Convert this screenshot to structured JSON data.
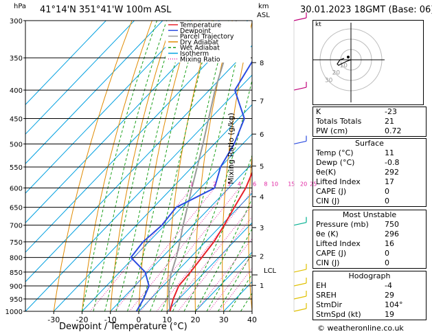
{
  "header": {
    "location": "41°14'N  351°41'W  100m  ASL",
    "datetime": "30.01.2023  18GMT  (Base: 06)",
    "hpa_label": "hPa",
    "km_label": "km",
    "asl_label": "ASL"
  },
  "legend": [
    "Temperature",
    "Dewpoint",
    "Parcel Trajectory",
    "Dry Adiabat",
    "Wet Adiabat",
    "Isotherm",
    "Mixing Ratio"
  ],
  "axes": {
    "xlabel": "Dewpoint / Temperature (°C)",
    "mixing_label": "Mixing Ratio (g/kg)",
    "lcl_label": "LCL"
  },
  "hodograph": {
    "unit_label": "kt",
    "ring_labels": [
      "30",
      "20",
      "10"
    ]
  },
  "indices": {
    "k_label": "K",
    "k": "-23",
    "tt_label": "Totals Totals",
    "tt": "21",
    "pw_label": "PW (cm)",
    "pw": "0.72"
  },
  "surface": {
    "title": "Surface",
    "rows": [
      {
        "label": "Temp (°C)",
        "value": "11"
      },
      {
        "label": "Dewp (°C)",
        "value": "-0.8"
      },
      {
        "label": "θe(K)",
        "value": "292"
      },
      {
        "label": "Lifted Index",
        "value": "17"
      },
      {
        "label": "CAPE (J)",
        "value": "0"
      },
      {
        "label": "CIN (J)",
        "value": "0"
      }
    ]
  },
  "most_unstable": {
    "title": "Most Unstable",
    "rows": [
      {
        "label": "Pressure (mb)",
        "value": "750"
      },
      {
        "label": "θe (K)",
        "value": "296"
      },
      {
        "label": "Lifted Index",
        "value": "16"
      },
      {
        "label": "CAPE (J)",
        "value": "0"
      },
      {
        "label": "CIN (J)",
        "value": "0"
      }
    ]
  },
  "hodo_table": {
    "title": "Hodograph",
    "rows": [
      {
        "label": "EH",
        "value": "-4"
      },
      {
        "label": "SREH",
        "value": "29"
      },
      {
        "label": "StmDir",
        "value": "104°"
      },
      {
        "label": "StmSpd (kt)",
        "value": "19"
      }
    ]
  },
  "footer": "© weatheronline.co.uk",
  "colors": {
    "temperature": "#e8202a",
    "dewpoint": "#2a4be0",
    "parcel": "#999999",
    "dry_adiabat": "#e08a00",
    "wet_adiabat": "#1aa01a",
    "isotherm": "#00a0e0",
    "mixing": "#e020a0"
  },
  "chart_data": {
    "type": "skew-t",
    "pressure_levels": [
      300,
      350,
      400,
      450,
      500,
      550,
      600,
      650,
      700,
      750,
      800,
      850,
      900,
      950,
      1000
    ],
    "x_ticks": [
      -30,
      -20,
      -10,
      0,
      10,
      20,
      30,
      40
    ],
    "xlim": [
      -40,
      40
    ],
    "ylim": [
      1000,
      300
    ],
    "km_ticks": [
      {
        "km": "8",
        "p": 357
      },
      {
        "km": "7",
        "p": 418
      },
      {
        "km": "6",
        "p": 480
      },
      {
        "km": "5",
        "p": 548
      },
      {
        "km": "4",
        "p": 622
      },
      {
        "km": "3",
        "p": 707
      },
      {
        "km": "2",
        "p": 795
      },
      {
        "km": "1",
        "p": 898
      }
    ],
    "mixing_ratio_labels": [
      "1",
      "2",
      "3",
      "4",
      "6",
      "8",
      "10",
      "15",
      "20",
      "25"
    ],
    "temperature": [
      [
        1000,
        11
      ],
      [
        950,
        8
      ],
      [
        900,
        5.5
      ],
      [
        850,
        5
      ],
      [
        800,
        4
      ],
      [
        750,
        3
      ],
      [
        700,
        1
      ],
      [
        650,
        -1.5
      ],
      [
        600,
        -4
      ],
      [
        550,
        -8
      ],
      [
        500,
        -11.5
      ],
      [
        450,
        -16
      ],
      [
        400,
        -21.5
      ],
      [
        350,
        -29
      ],
      [
        300,
        -37
      ]
    ],
    "dewpoint": [
      [
        1000,
        -0.8
      ],
      [
        950,
        -2.5
      ],
      [
        900,
        -5
      ],
      [
        850,
        -11
      ],
      [
        800,
        -21
      ],
      [
        750,
        -22
      ],
      [
        700,
        -21
      ],
      [
        650,
        -22
      ],
      [
        600,
        -15
      ],
      [
        550,
        -20
      ],
      [
        500,
        -23
      ],
      [
        450,
        -28
      ],
      [
        400,
        -41
      ],
      [
        350,
        -45
      ],
      [
        300,
        -46
      ]
    ],
    "parcel": [
      [
        1000,
        11
      ],
      [
        950,
        6.5
      ],
      [
        900,
        2
      ],
      [
        860,
        -1
      ],
      [
        800,
        -5
      ],
      [
        750,
        -9
      ],
      [
        700,
        -13.5
      ],
      [
        600,
        -23
      ],
      [
        500,
        -34
      ],
      [
        400,
        -48
      ],
      [
        300,
        -64
      ]
    ]
  }
}
